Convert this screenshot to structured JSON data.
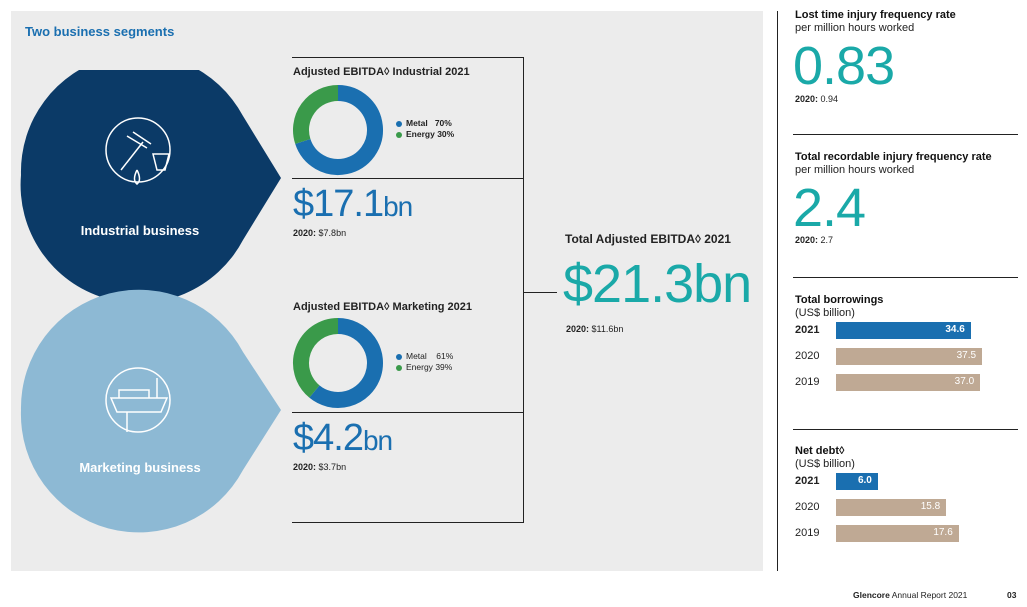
{
  "panel_title": "Two business segments",
  "industrial": {
    "label": "Industrial business",
    "heading": "Adjusted EBITDA◊ Industrial 2021",
    "legend": [
      {
        "name": "Metal",
        "pct": "70%",
        "value": 70,
        "color": "#1a6fb0"
      },
      {
        "name": "Energy",
        "pct": "30%",
        "value": 30,
        "color": "#3a9a4a"
      }
    ],
    "value_prefix": "$17.1",
    "value_unit": "bn",
    "prior_label": "2020:",
    "prior_value": "$7.8bn"
  },
  "marketing": {
    "label": "Marketing business",
    "heading": "Adjusted EBITDA◊ Marketing 2021",
    "legend": [
      {
        "name": "Metal",
        "pct": "61%",
        "value": 61,
        "color": "#1a6fb0"
      },
      {
        "name": "Energy",
        "pct": "39%",
        "value": 39,
        "color": "#3a9a4a"
      }
    ],
    "value_prefix": "$4.2",
    "value_unit": "bn",
    "prior_label": "2020:",
    "prior_value": "$3.7bn"
  },
  "total": {
    "heading": "Total Adjusted EBITDA◊ 2021",
    "value": "$21.3bn",
    "prior_label": "2020:",
    "prior_value": "$11.6bn"
  },
  "ltifr": {
    "title": "Lost time injury frequency rate",
    "sub": "per million hours worked",
    "value": "0.83",
    "prior_label": "2020:",
    "prior_value": "0.94"
  },
  "trifr": {
    "title": "Total recordable injury frequency rate",
    "sub": "per million hours worked",
    "value": "2.4",
    "prior_label": "2020:",
    "prior_value": "2.7"
  },
  "borrowings": {
    "title": "Total borrowings",
    "sub": "(US$ billion)",
    "bars": [
      {
        "year": "2021",
        "value": 34.6,
        "label": "34.6"
      },
      {
        "year": "2020",
        "value": 37.5,
        "label": "37.5"
      },
      {
        "year": "2019",
        "value": 37.0,
        "label": "37.0"
      }
    ]
  },
  "net_debt": {
    "title": "Net debt◊",
    "sub": "(US$ billion)",
    "bars": [
      {
        "year": "2021",
        "value": 6.0,
        "label": "6.0"
      },
      {
        "year": "2020",
        "value": 15.8,
        "label": "15.8"
      },
      {
        "year": "2019",
        "value": 17.6,
        "label": "17.6"
      }
    ]
  },
  "footer": {
    "brand": "Glencore",
    "doc": "Annual Report 2021",
    "page": "03"
  },
  "colors": {
    "navy": "#0b3a67",
    "light_blue": "#8db9d4",
    "teal": "#1aa9a8",
    "bar_current": "#1a6fb0",
    "bar_prior": "#bfa994"
  }
}
